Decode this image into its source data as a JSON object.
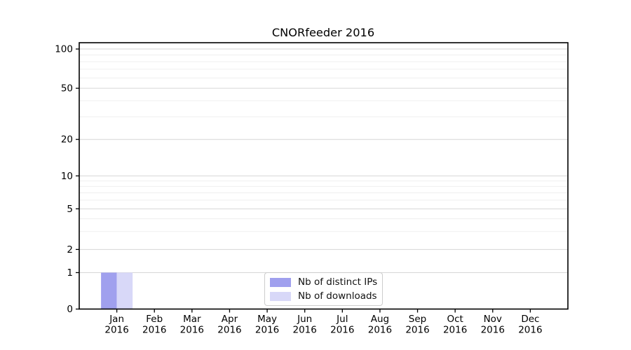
{
  "chart_data": {
    "type": "bar",
    "title": "CNORfeeder 2016",
    "categories": [
      "Jan",
      "Feb",
      "Mar",
      "Apr",
      "May",
      "Jun",
      "Jul",
      "Aug",
      "Sep",
      "Oct",
      "Nov",
      "Dec"
    ],
    "category_year": "2016",
    "series": [
      {
        "name": "Nb of distinct IPs",
        "color": "#a0a0ee",
        "values": [
          1,
          0,
          0,
          0,
          0,
          0,
          0,
          0,
          0,
          0,
          0,
          0
        ]
      },
      {
        "name": "Nb of downloads",
        "color": "#d8d8f8",
        "values": [
          1,
          0,
          0,
          0,
          0,
          0,
          0,
          0,
          0,
          0,
          0,
          0
        ]
      }
    ],
    "yticks": [
      0,
      1,
      2,
      5,
      10,
      20,
      50,
      100
    ],
    "ylim": [
      0,
      112
    ],
    "yscale": "log-like-custom",
    "xlabel": "",
    "ylabel": "",
    "grid": {
      "horizontal_major": true,
      "horizontal_minor": true,
      "vertical": false
    },
    "legend": {
      "position": "inside-bottom-center",
      "entries": [
        "Nb of distinct IPs",
        "Nb of downloads"
      ]
    }
  },
  "colors": {
    "major_grid": "#d6d6d6",
    "minor_grid": "#efefef",
    "axis": "#000000",
    "background": "#ffffff"
  }
}
